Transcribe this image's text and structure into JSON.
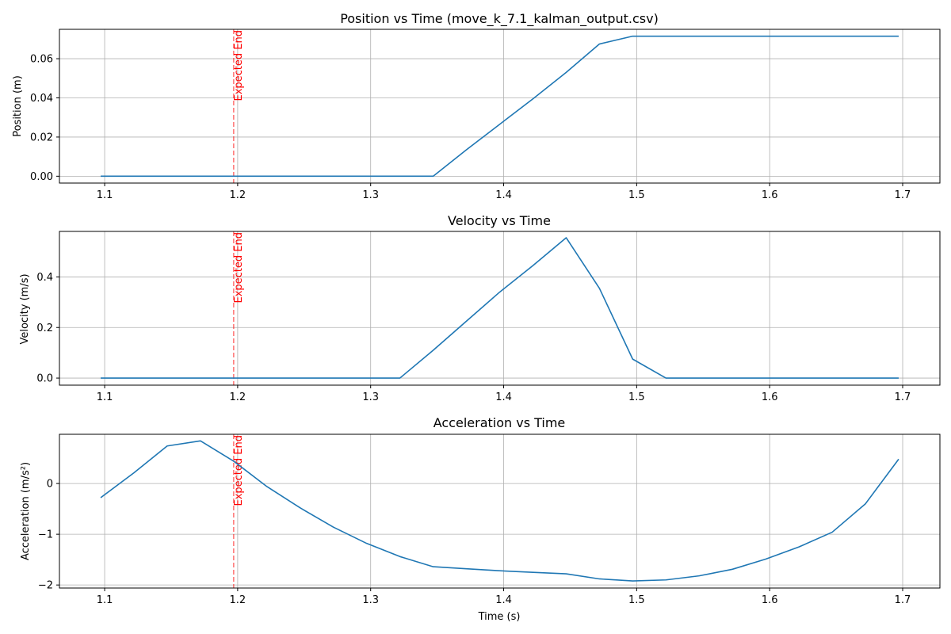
{
  "figure": {
    "xlabel": "Time (s)"
  },
  "colors": {
    "series": "#1f77b4",
    "marker": "#ff0000",
    "grid": "#b0b0b0",
    "axis": "#000000"
  },
  "chart_data": [
    {
      "type": "line",
      "title": "Position vs Time (move_k_7.1_kalman_output.csv)",
      "xlabel": "",
      "ylabel": "Position (m)",
      "xlim": [
        1.066,
        1.728
      ],
      "ylim": [
        -0.0035,
        0.075
      ],
      "grid": true,
      "xticks": [
        1.1,
        1.2,
        1.3,
        1.4,
        1.5,
        1.6,
        1.7
      ],
      "xtick_labels": [
        "1.1",
        "1.2",
        "1.3",
        "1.4",
        "1.5",
        "1.6",
        "1.7"
      ],
      "yticks": [
        0.0,
        0.02,
        0.04,
        0.06
      ],
      "ytick_labels": [
        "0.00",
        "0.02",
        "0.04",
        "0.06"
      ],
      "vline": {
        "x": 1.197,
        "label": "Expected End"
      },
      "series": [
        {
          "x": [
            1.097,
            1.122,
            1.147,
            1.172,
            1.197,
            1.222,
            1.247,
            1.272,
            1.297,
            1.322,
            1.347,
            1.372,
            1.397,
            1.422,
            1.447,
            1.472,
            1.497,
            1.522,
            1.547,
            1.572,
            1.597,
            1.622,
            1.647,
            1.672,
            1.697
          ],
          "y": [
            0,
            0,
            0,
            0,
            0,
            0,
            0,
            0,
            0,
            0,
            0,
            0.0135,
            0.0265,
            0.0395,
            0.053,
            0.0675,
            0.0715,
            0.0715,
            0.0715,
            0.0715,
            0.0715,
            0.0715,
            0.0715,
            0.0715,
            0.0715
          ]
        }
      ]
    },
    {
      "type": "line",
      "title": "Velocity vs Time",
      "xlabel": "",
      "ylabel": "Velocity (m/s)",
      "xlim": [
        1.066,
        1.728
      ],
      "ylim": [
        -0.028,
        0.58
      ],
      "grid": true,
      "xticks": [
        1.1,
        1.2,
        1.3,
        1.4,
        1.5,
        1.6,
        1.7
      ],
      "xtick_labels": [
        "1.1",
        "1.2",
        "1.3",
        "1.4",
        "1.5",
        "1.6",
        "1.7"
      ],
      "yticks": [
        0.0,
        0.2,
        0.4
      ],
      "ytick_labels": [
        "0.0",
        "0.2",
        "0.4"
      ],
      "vline": {
        "x": 1.197,
        "label": "Expected End"
      },
      "series": [
        {
          "x": [
            1.097,
            1.122,
            1.147,
            1.172,
            1.197,
            1.222,
            1.247,
            1.272,
            1.297,
            1.322,
            1.347,
            1.372,
            1.397,
            1.422,
            1.447,
            1.472,
            1.497,
            1.522,
            1.547,
            1.572,
            1.597,
            1.622,
            1.647,
            1.672,
            1.697
          ],
          "y": [
            0,
            0,
            0,
            0,
            0,
            0,
            0,
            0,
            0,
            0,
            0.11,
            0.225,
            0.34,
            0.445,
            0.555,
            0.355,
            0.075,
            0,
            0,
            0,
            0,
            0,
            0,
            0,
            0
          ]
        }
      ]
    },
    {
      "type": "line",
      "title": "Acceleration vs Time",
      "xlabel": "Time (s)",
      "ylabel": "Acceleration (m/s²)",
      "xlim": [
        1.066,
        1.728
      ],
      "ylim": [
        -2.06,
        0.97
      ],
      "grid": true,
      "xticks": [
        1.1,
        1.2,
        1.3,
        1.4,
        1.5,
        1.6,
        1.7
      ],
      "xtick_labels": [
        "1.1",
        "1.2",
        "1.3",
        "1.4",
        "1.5",
        "1.6",
        "1.7"
      ],
      "yticks": [
        -2,
        -1,
        0
      ],
      "ytick_labels": [
        "−2",
        "−1",
        "0"
      ],
      "vline": {
        "x": 1.197,
        "label": "Expected End"
      },
      "series": [
        {
          "x": [
            1.097,
            1.122,
            1.147,
            1.172,
            1.197,
            1.222,
            1.247,
            1.272,
            1.297,
            1.322,
            1.347,
            1.372,
            1.397,
            1.422,
            1.447,
            1.472,
            1.497,
            1.522,
            1.547,
            1.572,
            1.597,
            1.622,
            1.647,
            1.672,
            1.697
          ],
          "y": [
            -0.28,
            0.21,
            0.74,
            0.84,
            0.44,
            -0.06,
            -0.48,
            -0.86,
            -1.18,
            -1.44,
            -1.64,
            -1.68,
            -1.72,
            -1.75,
            -1.78,
            -1.88,
            -1.92,
            -1.9,
            -1.82,
            -1.69,
            -1.49,
            -1.25,
            -0.96,
            -0.4,
            0.48
          ]
        }
      ]
    }
  ]
}
